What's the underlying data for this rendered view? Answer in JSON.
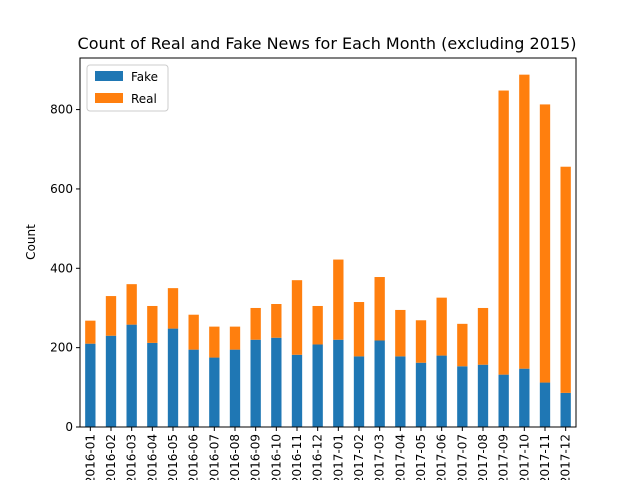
{
  "chart_data": {
    "type": "bar",
    "stacked": true,
    "title": "Count of Real and Fake News for Each Month (excluding 2015)",
    "xlabel": "",
    "ylabel": "Count",
    "ylim": [
      0,
      930
    ],
    "yticks": [
      0,
      200,
      400,
      600,
      800
    ],
    "categories": [
      "2016-01",
      "2016-02",
      "2016-03",
      "2016-04",
      "2016-05",
      "2016-06",
      "2016-07",
      "2016-08",
      "2016-09",
      "2016-10",
      "2016-11",
      "2016-12",
      "2017-01",
      "2017-02",
      "2017-03",
      "2017-04",
      "2017-05",
      "2017-06",
      "2017-07",
      "2017-08",
      "2017-09",
      "2017-10",
      "2017-11",
      "2017-12"
    ],
    "series": [
      {
        "name": "Fake",
        "color": "#1f77b4",
        "values": [
          210,
          230,
          258,
          212,
          248,
          195,
          175,
          195,
          220,
          225,
          182,
          208,
          220,
          178,
          218,
          178,
          162,
          180,
          153,
          157,
          132,
          147,
          112,
          86
        ]
      },
      {
        "name": "Real",
        "color": "#ff7f0e",
        "values": [
          58,
          100,
          102,
          93,
          102,
          88,
          78,
          58,
          80,
          85,
          188,
          97,
          202,
          137,
          160,
          117,
          107,
          146,
          107,
          143,
          716,
          741,
          701,
          570
        ]
      }
    ],
    "legend": "top-left",
    "grid": false
  }
}
